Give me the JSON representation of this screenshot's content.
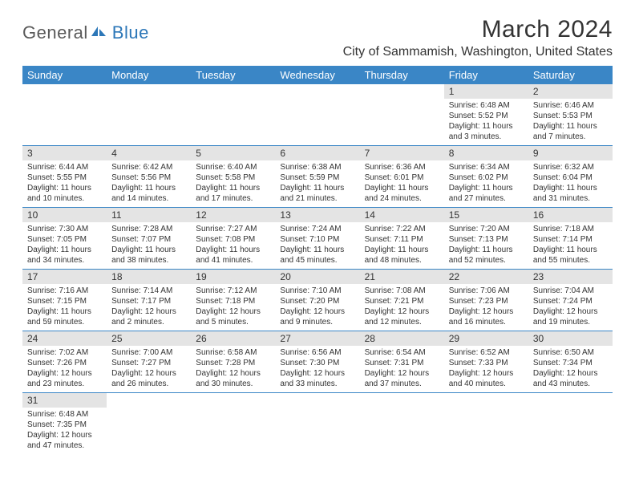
{
  "logo": {
    "text1": "General",
    "text2": "Blue"
  },
  "title": "March 2024",
  "location": "City of Sammamish, Washington, United States",
  "colors": {
    "header_bg": "#3a86c6",
    "header_text": "#ffffff",
    "daynum_bg": "#e4e4e4",
    "border": "#3a86c6",
    "logo_blue": "#2c77b8",
    "logo_gray": "#5a5a5a"
  },
  "weekdays": [
    "Sunday",
    "Monday",
    "Tuesday",
    "Wednesday",
    "Thursday",
    "Friday",
    "Saturday"
  ],
  "weeks": [
    [
      null,
      null,
      null,
      null,
      null,
      {
        "n": "1",
        "sunrise": "6:48 AM",
        "sunset": "5:52 PM",
        "daylight": "11 hours and 3 minutes."
      },
      {
        "n": "2",
        "sunrise": "6:46 AM",
        "sunset": "5:53 PM",
        "daylight": "11 hours and 7 minutes."
      }
    ],
    [
      {
        "n": "3",
        "sunrise": "6:44 AM",
        "sunset": "5:55 PM",
        "daylight": "11 hours and 10 minutes."
      },
      {
        "n": "4",
        "sunrise": "6:42 AM",
        "sunset": "5:56 PM",
        "daylight": "11 hours and 14 minutes."
      },
      {
        "n": "5",
        "sunrise": "6:40 AM",
        "sunset": "5:58 PM",
        "daylight": "11 hours and 17 minutes."
      },
      {
        "n": "6",
        "sunrise": "6:38 AM",
        "sunset": "5:59 PM",
        "daylight": "11 hours and 21 minutes."
      },
      {
        "n": "7",
        "sunrise": "6:36 AM",
        "sunset": "6:01 PM",
        "daylight": "11 hours and 24 minutes."
      },
      {
        "n": "8",
        "sunrise": "6:34 AM",
        "sunset": "6:02 PM",
        "daylight": "11 hours and 27 minutes."
      },
      {
        "n": "9",
        "sunrise": "6:32 AM",
        "sunset": "6:04 PM",
        "daylight": "11 hours and 31 minutes."
      }
    ],
    [
      {
        "n": "10",
        "sunrise": "7:30 AM",
        "sunset": "7:05 PM",
        "daylight": "11 hours and 34 minutes."
      },
      {
        "n": "11",
        "sunrise": "7:28 AM",
        "sunset": "7:07 PM",
        "daylight": "11 hours and 38 minutes."
      },
      {
        "n": "12",
        "sunrise": "7:27 AM",
        "sunset": "7:08 PM",
        "daylight": "11 hours and 41 minutes."
      },
      {
        "n": "13",
        "sunrise": "7:24 AM",
        "sunset": "7:10 PM",
        "daylight": "11 hours and 45 minutes."
      },
      {
        "n": "14",
        "sunrise": "7:22 AM",
        "sunset": "7:11 PM",
        "daylight": "11 hours and 48 minutes."
      },
      {
        "n": "15",
        "sunrise": "7:20 AM",
        "sunset": "7:13 PM",
        "daylight": "11 hours and 52 minutes."
      },
      {
        "n": "16",
        "sunrise": "7:18 AM",
        "sunset": "7:14 PM",
        "daylight": "11 hours and 55 minutes."
      }
    ],
    [
      {
        "n": "17",
        "sunrise": "7:16 AM",
        "sunset": "7:15 PM",
        "daylight": "11 hours and 59 minutes."
      },
      {
        "n": "18",
        "sunrise": "7:14 AM",
        "sunset": "7:17 PM",
        "daylight": "12 hours and 2 minutes."
      },
      {
        "n": "19",
        "sunrise": "7:12 AM",
        "sunset": "7:18 PM",
        "daylight": "12 hours and 5 minutes."
      },
      {
        "n": "20",
        "sunrise": "7:10 AM",
        "sunset": "7:20 PM",
        "daylight": "12 hours and 9 minutes."
      },
      {
        "n": "21",
        "sunrise": "7:08 AM",
        "sunset": "7:21 PM",
        "daylight": "12 hours and 12 minutes."
      },
      {
        "n": "22",
        "sunrise": "7:06 AM",
        "sunset": "7:23 PM",
        "daylight": "12 hours and 16 minutes."
      },
      {
        "n": "23",
        "sunrise": "7:04 AM",
        "sunset": "7:24 PM",
        "daylight": "12 hours and 19 minutes."
      }
    ],
    [
      {
        "n": "24",
        "sunrise": "7:02 AM",
        "sunset": "7:26 PM",
        "daylight": "12 hours and 23 minutes."
      },
      {
        "n": "25",
        "sunrise": "7:00 AM",
        "sunset": "7:27 PM",
        "daylight": "12 hours and 26 minutes."
      },
      {
        "n": "26",
        "sunrise": "6:58 AM",
        "sunset": "7:28 PM",
        "daylight": "12 hours and 30 minutes."
      },
      {
        "n": "27",
        "sunrise": "6:56 AM",
        "sunset": "7:30 PM",
        "daylight": "12 hours and 33 minutes."
      },
      {
        "n": "28",
        "sunrise": "6:54 AM",
        "sunset": "7:31 PM",
        "daylight": "12 hours and 37 minutes."
      },
      {
        "n": "29",
        "sunrise": "6:52 AM",
        "sunset": "7:33 PM",
        "daylight": "12 hours and 40 minutes."
      },
      {
        "n": "30",
        "sunrise": "6:50 AM",
        "sunset": "7:34 PM",
        "daylight": "12 hours and 43 minutes."
      }
    ],
    [
      {
        "n": "31",
        "sunrise": "6:48 AM",
        "sunset": "7:35 PM",
        "daylight": "12 hours and 47 minutes."
      },
      null,
      null,
      null,
      null,
      null,
      null
    ]
  ]
}
